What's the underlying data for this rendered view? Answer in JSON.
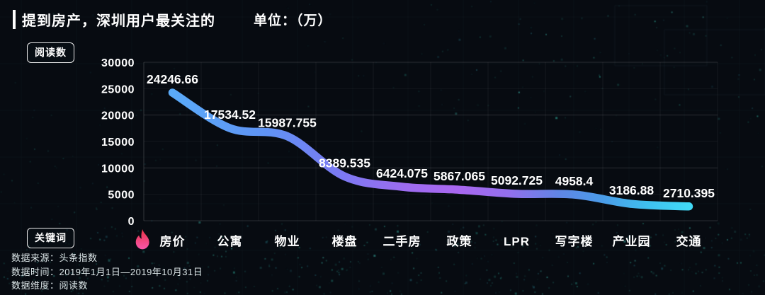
{
  "header": {
    "title": "提到房产，深圳用户最关注的",
    "unit_label": "单位：（万）"
  },
  "badges": {
    "y_axis": "阅读数",
    "x_axis": "关键词"
  },
  "footer": {
    "source": "数据来源：头条指数",
    "time": "数据时间：2019年1月1日—2019年10月31日",
    "dimension": "数据维度：阅读数"
  },
  "chart_data": {
    "type": "line",
    "title": "提到房产，深圳用户最关注的",
    "unit": "万",
    "xlabel": "关键词",
    "ylabel": "阅读数",
    "categories": [
      "房价",
      "公寓",
      "物业",
      "楼盘",
      "二手房",
      "政策",
      "LPR",
      "写字楼",
      "产业园",
      "交通"
    ],
    "values": [
      24246.66,
      17534.52,
      15987.755,
      8389.535,
      6424.075,
      5867.065,
      5092.725,
      4958.4,
      3186.88,
      2710.395
    ],
    "ylim": [
      0,
      30000
    ],
    "yticks": [
      0,
      5000,
      10000,
      15000,
      20000,
      25000,
      30000
    ],
    "grid": true,
    "smooth": true,
    "legend_position": "none",
    "hot_category": "房价",
    "hot_icon": "flame-icon",
    "line_gradient": [
      {
        "offset": 0,
        "color": "#5aaaf8"
      },
      {
        "offset": 0.18,
        "color": "#5f93f4"
      },
      {
        "offset": 0.32,
        "color": "#7a7af2"
      },
      {
        "offset": 0.45,
        "color": "#9c6cf0"
      },
      {
        "offset": 0.55,
        "color": "#a967f0"
      },
      {
        "offset": 0.65,
        "color": "#936fec"
      },
      {
        "offset": 0.75,
        "color": "#5f86e6"
      },
      {
        "offset": 0.83,
        "color": "#4b9be8"
      },
      {
        "offset": 0.92,
        "color": "#3fc0ef"
      },
      {
        "offset": 1,
        "color": "#41d9f6"
      }
    ]
  },
  "colors": {
    "background": "#070b11",
    "text": "#ffffff",
    "grid": "#ffffff",
    "flame_top": "#e93345",
    "flame_bottom": "#f756ab",
    "particle": "#2fae9d"
  }
}
